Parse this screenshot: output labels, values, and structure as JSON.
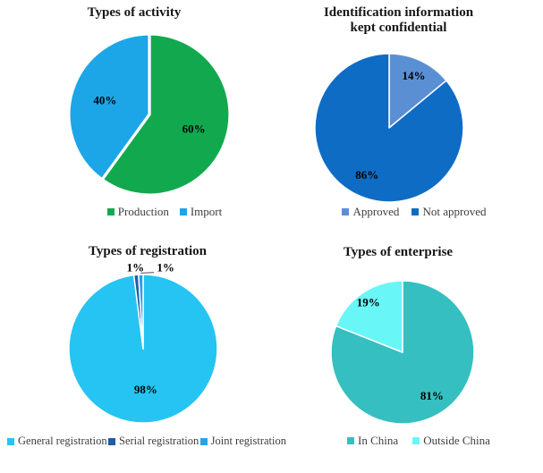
{
  "figure": {
    "background": "#ffffff"
  },
  "chart_data": [
    {
      "id": "activity",
      "type": "pie",
      "title": "Types of activity",
      "legend_position": "bottom",
      "slices": [
        {
          "label": "Production",
          "value": 60,
          "data_label": "60%",
          "color": "#12A94E",
          "label_frac": 0.58
        },
        {
          "label": "Import",
          "value": 40,
          "data_label": "40%",
          "color": "#1CA6E8",
          "label_frac": 0.58
        }
      ]
    },
    {
      "id": "confidential",
      "type": "pie",
      "title": "Identification information\nkept confidential",
      "legend_position": "bottom",
      "slices": [
        {
          "label": "Approved",
          "value": 14,
          "data_label": "14%",
          "color": "#5B8FD4",
          "label_frac": 0.78
        },
        {
          "label": "Not approved",
          "value": 86,
          "data_label": "86%",
          "color": "#0F6CC4",
          "label_frac": 0.7
        }
      ]
    },
    {
      "id": "registration",
      "type": "pie",
      "title": "Types of registration",
      "legend_position": "bottom",
      "slices": [
        {
          "label": "General registration",
          "value": 98,
          "data_label": "98%",
          "color": "#25C4F2",
          "label_frac": 0.55
        },
        {
          "label": "Serial registration",
          "value": 1,
          "data_label": "1%",
          "color": "#1F5BAD",
          "label_frac": 1.1,
          "outside": true
        },
        {
          "label": "Joint registration",
          "value": 1,
          "data_label": "1%",
          "color": "#2AA2E0",
          "label_frac": 1.1,
          "outside": true,
          "label_dx": 28,
          "leader": true
        }
      ]
    },
    {
      "id": "enterprise",
      "type": "pie",
      "title": "Types of enterprise",
      "legend_position": "bottom",
      "slices": [
        {
          "label": "In China",
          "value": 81,
          "data_label": "81%",
          "color": "#35BFC0",
          "label_frac": 0.73
        },
        {
          "label": "Outside China",
          "value": 19,
          "data_label": "19%",
          "color": "#69F6F6",
          "label_frac": 0.85
        }
      ]
    }
  ]
}
